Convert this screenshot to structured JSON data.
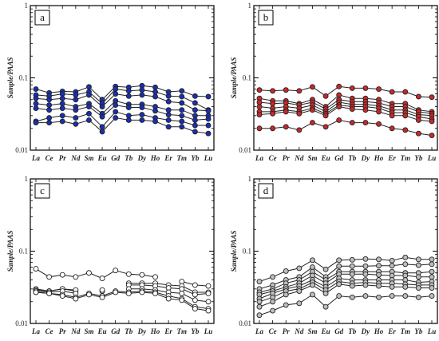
{
  "chart_data": [
    {
      "type": "line",
      "panel_label": "a",
      "ylabel": "Sample/PAAS",
      "yscale": "log",
      "ylim": [
        0.01,
        1
      ],
      "yticks": [
        "1",
        "0.1",
        "0.01"
      ],
      "categories": [
        "La",
        "Ce",
        "Pr",
        "Nd",
        "Sm",
        "Eu",
        "Gd",
        "Tb",
        "Dy",
        "Ho",
        "Er",
        "Tm",
        "Yb",
        "Lu"
      ],
      "marker_fill": "#1a2fb0",
      "series": [
        {
          "values": [
            0.07,
            0.062,
            0.065,
            0.064,
            0.075,
            0.05,
            0.076,
            0.074,
            0.078,
            0.074,
            0.064,
            0.066,
            0.056,
            0.055
          ]
        },
        {
          "values": [
            0.058,
            0.056,
            0.06,
            0.058,
            0.064,
            0.044,
            0.07,
            0.066,
            0.068,
            0.064,
            0.056,
            0.055,
            0.045,
            0.036
          ]
        },
        {
          "values": [
            0.052,
            0.05,
            0.052,
            0.05,
            0.058,
            0.04,
            0.06,
            0.056,
            0.058,
            0.055,
            0.047,
            0.045,
            0.036,
            0.035
          ]
        },
        {
          "values": [
            0.044,
            0.042,
            0.044,
            0.04,
            0.044,
            0.032,
            0.048,
            0.043,
            0.043,
            0.04,
            0.036,
            0.036,
            0.03,
            0.03
          ]
        },
        {
          "values": [
            0.038,
            0.036,
            0.038,
            0.036,
            0.04,
            0.029,
            0.042,
            0.039,
            0.039,
            0.035,
            0.031,
            0.03,
            0.026,
            0.027
          ]
        },
        {
          "values": [
            0.025,
            0.028,
            0.03,
            0.028,
            0.032,
            0.021,
            0.034,
            0.03,
            0.031,
            0.028,
            0.026,
            0.025,
            0.022,
            0.022
          ]
        },
        {
          "values": [
            0.024,
            0.024,
            0.025,
            0.023,
            0.026,
            0.018,
            0.028,
            0.026,
            0.026,
            0.025,
            0.021,
            0.021,
            0.018,
            0.017
          ]
        }
      ]
    },
    {
      "type": "line",
      "panel_label": "b",
      "ylabel": "Sample/PAAS",
      "yscale": "log",
      "ylim": [
        0.01,
        1
      ],
      "yticks": [
        "1",
        "0.1",
        "0.01"
      ],
      "categories": [
        "La",
        "Ce",
        "Pr",
        "Nd",
        "Sm",
        "Eu",
        "Gd",
        "Tb",
        "Dy",
        "Ho",
        "Er",
        "Tm",
        "Yb",
        "Lu"
      ],
      "marker_fill": "#c8282a",
      "series": [
        {
          "values": [
            0.068,
            0.066,
            0.068,
            0.066,
            0.075,
            0.056,
            0.076,
            0.072,
            0.072,
            0.07,
            0.064,
            0.064,
            0.055,
            0.054
          ]
        },
        {
          "values": [
            0.052,
            0.048,
            0.048,
            0.044,
            0.05,
            0.04,
            0.058,
            0.052,
            0.052,
            0.05,
            0.044,
            0.044,
            0.036,
            0.034
          ]
        },
        {
          "values": [
            0.046,
            0.044,
            0.045,
            0.042,
            0.046,
            0.037,
            0.05,
            0.047,
            0.047,
            0.045,
            0.04,
            0.04,
            0.034,
            0.032
          ]
        },
        {
          "values": [
            0.04,
            0.038,
            0.04,
            0.038,
            0.042,
            0.034,
            0.046,
            0.043,
            0.043,
            0.041,
            0.036,
            0.036,
            0.031,
            0.03
          ]
        },
        {
          "values": [
            0.034,
            0.034,
            0.036,
            0.034,
            0.038,
            0.032,
            0.042,
            0.04,
            0.04,
            0.038,
            0.033,
            0.033,
            0.029,
            0.027
          ]
        },
        {
          "values": [
            0.031,
            0.032,
            0.034,
            0.032,
            0.036,
            0.03,
            0.04,
            0.037,
            0.036,
            0.034,
            0.03,
            0.03,
            0.026,
            0.025
          ]
        },
        {
          "values": [
            0.02,
            0.02,
            0.021,
            0.019,
            0.024,
            0.021,
            0.026,
            0.024,
            0.024,
            0.023,
            0.02,
            0.019,
            0.017,
            0.016
          ]
        }
      ]
    },
    {
      "type": "line",
      "panel_label": "c",
      "ylabel": "Sample/PAAS",
      "yscale": "log",
      "ylim": [
        0.01,
        1
      ],
      "yticks": [
        "1",
        "0.1",
        "0.01"
      ],
      "categories": [
        "La",
        "Ce",
        "Pr",
        "Nd",
        "Sm",
        "Eu",
        "Gd",
        "Tb",
        "Dy",
        "Ho",
        "Er",
        "Tm",
        "Yb",
        "Lu"
      ],
      "marker_fill": "#ffffff",
      "series": [
        {
          "values": [
            0.057,
            0.044,
            0.047,
            0.044,
            0.05,
            0.042,
            0.054,
            0.048,
            0.047,
            0.044,
            null,
            0.038,
            0.034,
            0.033
          ]
        },
        {
          "values": [
            0.03,
            0.028,
            0.03,
            0.028,
            null,
            0.028,
            null,
            0.036,
            0.036,
            0.036,
            0.034,
            0.033,
            0.027,
            0.027
          ]
        },
        {
          "values": [
            0.029,
            0.028,
            0.03,
            0.029,
            null,
            0.029,
            null,
            0.034,
            0.034,
            0.033,
            0.031,
            0.03,
            0.025,
            0.026
          ]
        },
        {
          "values": [
            0.028,
            0.027,
            0.028,
            0.026,
            null,
            null,
            null,
            0.03,
            0.03,
            0.029,
            0.027,
            0.026,
            0.021,
            0.02
          ]
        },
        {
          "values": [
            0.027,
            0.026,
            0.025,
            0.023,
            0.026,
            0.024,
            0.028,
            0.027,
            0.028,
            0.027,
            0.024,
            0.022,
            0.017,
            0.016
          ]
        },
        {
          "values": [
            0.027,
            0.026,
            0.024,
            0.022,
            0.025,
            0.023,
            0.027,
            0.026,
            0.027,
            0.026,
            0.022,
            0.021,
            0.016,
            0.015
          ]
        }
      ]
    },
    {
      "type": "line",
      "panel_label": "d",
      "ylabel": "Sample/PAAS",
      "yscale": "log",
      "ylim": [
        0.01,
        1
      ],
      "yticks": [
        "1",
        "0.1",
        "0.01"
      ],
      "categories": [
        "La",
        "Ce",
        "Pr",
        "Nd",
        "Sm",
        "Eu",
        "Gd",
        "Tb",
        "Dy",
        "Ho",
        "Er",
        "Tm",
        "Yb",
        "Lu"
      ],
      "marker_fill": "#bdbdbd",
      "series": [
        {
          "values": [
            0.038,
            0.044,
            0.053,
            0.058,
            0.075,
            0.056,
            0.075,
            0.076,
            0.078,
            0.077,
            0.074,
            0.082,
            0.077,
            0.077
          ]
        },
        {
          "values": [
            0.03,
            0.034,
            0.04,
            0.044,
            0.06,
            0.044,
            0.062,
            0.062,
            0.062,
            0.063,
            0.063,
            0.066,
            0.064,
            0.066
          ]
        },
        {
          "values": [
            0.027,
            0.03,
            0.036,
            0.04,
            0.052,
            0.04,
            0.052,
            0.052,
            0.052,
            0.052,
            0.052,
            0.05,
            0.05,
            0.052
          ]
        },
        {
          "values": [
            0.025,
            0.028,
            0.032,
            0.036,
            0.046,
            0.036,
            0.048,
            0.048,
            0.048,
            0.047,
            0.046,
            0.046,
            0.044,
            0.044
          ]
        },
        {
          "values": [
            0.022,
            0.026,
            0.03,
            0.033,
            0.04,
            0.032,
            0.042,
            0.04,
            0.04,
            0.04,
            0.04,
            0.04,
            0.037,
            0.038
          ]
        },
        {
          "values": [
            0.02,
            0.023,
            0.028,
            0.03,
            0.037,
            0.029,
            0.038,
            0.036,
            0.037,
            0.036,
            0.036,
            0.035,
            0.034,
            0.034
          ]
        },
        {
          "values": [
            0.017,
            0.02,
            0.025,
            0.028,
            0.034,
            0.026,
            0.035,
            0.033,
            0.034,
            0.033,
            0.032,
            0.032,
            0.031,
            0.031
          ]
        },
        {
          "values": [
            0.013,
            0.015,
            0.018,
            0.019,
            0.025,
            0.017,
            0.024,
            0.023,
            0.024,
            0.023,
            0.024,
            0.024,
            0.023,
            0.024
          ]
        }
      ]
    }
  ]
}
